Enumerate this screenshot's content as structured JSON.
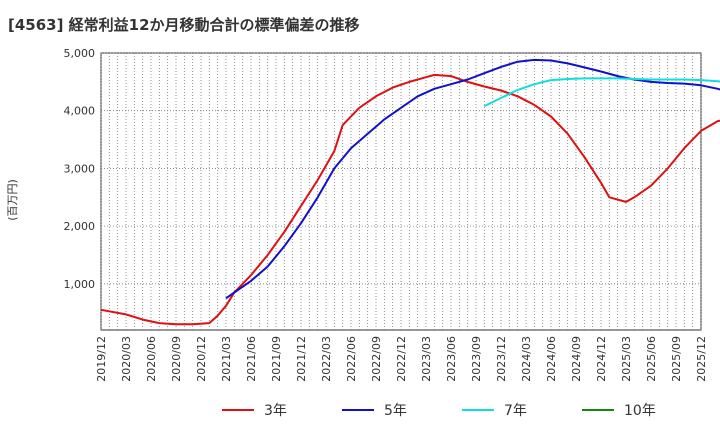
{
  "chart_data": {
    "type": "line",
    "title": "[4563]  経常利益12か月移動合計の標準偏差の推移",
    "ylabel": "(百万円)",
    "xlabel": "",
    "ylim": [
      200,
      5000
    ],
    "grid": true,
    "legend_position": "bottom",
    "y_ticks": [
      1000,
      2000,
      3000,
      4000,
      5000
    ],
    "y_tick_labels": [
      "1,000",
      "2,000",
      "3,000",
      "4,000",
      "5,000"
    ],
    "x_tick_labels": [
      "2019/12",
      "2020/03",
      "2020/06",
      "2020/09",
      "2020/12",
      "2021/03",
      "2021/06",
      "2021/09",
      "2021/12",
      "2022/03",
      "2022/06",
      "2022/09",
      "2022/12",
      "2023/03",
      "2023/06",
      "2023/09",
      "2023/12",
      "2024/03",
      "2024/06",
      "2024/09",
      "2024/12",
      "2025/03",
      "2025/06",
      "2025/09",
      "2025/12"
    ],
    "series": [
      {
        "name": "3年",
        "color": "#dd1111",
        "points": [
          [
            "2019/12",
            550
          ],
          [
            "2020/03",
            470
          ],
          [
            "2020/05",
            380
          ],
          [
            "2020/07",
            320
          ],
          [
            "2020/09",
            300
          ],
          [
            "2020/11",
            300
          ],
          [
            "2021/01",
            320
          ],
          [
            "2021/02",
            450
          ],
          [
            "2021/03",
            620
          ],
          [
            "2021/04",
            850
          ],
          [
            "2021/06",
            1150
          ],
          [
            "2021/08",
            1500
          ],
          [
            "2021/10",
            1900
          ],
          [
            "2021/12",
            2350
          ],
          [
            "2022/02",
            2800
          ],
          [
            "2022/04",
            3300
          ],
          [
            "2022/05",
            3750
          ],
          [
            "2022/07",
            4050
          ],
          [
            "2022/09",
            4250
          ],
          [
            "2022/11",
            4400
          ],
          [
            "2023/01",
            4500
          ],
          [
            "2023/03",
            4580
          ],
          [
            "2023/04",
            4620
          ],
          [
            "2023/06",
            4600
          ],
          [
            "2023/08",
            4500
          ],
          [
            "2023/10",
            4420
          ],
          [
            "2023/12",
            4350
          ],
          [
            "2024/02",
            4250
          ],
          [
            "2024/04",
            4100
          ],
          [
            "2024/06",
            3900
          ],
          [
            "2024/08",
            3600
          ],
          [
            "2024/10",
            3200
          ],
          [
            "2024/12",
            2750
          ],
          [
            "2025/01",
            2500
          ],
          [
            "2025/03",
            2420
          ],
          [
            "2025/04",
            2500
          ],
          [
            "2025/06",
            2700
          ],
          [
            "2025/08",
            3000
          ],
          [
            "2025/10",
            3350
          ],
          [
            "2025/12",
            3650
          ],
          [
            "2026/02",
            3820
          ],
          [
            "2026/03",
            3840
          ],
          [
            "2026/05",
            3780
          ],
          [
            "2026/07",
            3730
          ],
          [
            "2026/09",
            3700
          ]
        ]
      },
      {
        "name": "5年",
        "color": "#1111cc",
        "points": [
          [
            "2021/03",
            750
          ],
          [
            "2021/04",
            850
          ],
          [
            "2021/06",
            1050
          ],
          [
            "2021/08",
            1300
          ],
          [
            "2021/10",
            1650
          ],
          [
            "2021/12",
            2050
          ],
          [
            "2022/02",
            2500
          ],
          [
            "2022/04",
            3000
          ],
          [
            "2022/06",
            3350
          ],
          [
            "2022/08",
            3600
          ],
          [
            "2022/10",
            3850
          ],
          [
            "2022/12",
            4050
          ],
          [
            "2023/02",
            4250
          ],
          [
            "2023/04",
            4380
          ],
          [
            "2023/06",
            4460
          ],
          [
            "2023/08",
            4540
          ],
          [
            "2023/10",
            4650
          ],
          [
            "2023/12",
            4760
          ],
          [
            "2024/02",
            4850
          ],
          [
            "2024/04",
            4880
          ],
          [
            "2024/06",
            4870
          ],
          [
            "2024/08",
            4820
          ],
          [
            "2024/10",
            4750
          ],
          [
            "2024/12",
            4680
          ],
          [
            "2025/02",
            4600
          ],
          [
            "2025/04",
            4540
          ],
          [
            "2025/06",
            4500
          ],
          [
            "2025/08",
            4480
          ],
          [
            "2025/10",
            4470
          ],
          [
            "2025/12",
            4440
          ],
          [
            "2026/02",
            4380
          ],
          [
            "2026/04",
            4300
          ],
          [
            "2026/07",
            4210
          ],
          [
            "2026/09",
            4110
          ]
        ]
      },
      {
        "name": "7年",
        "color": "#11dddd",
        "points": [
          [
            "2023/10",
            4080
          ],
          [
            "2023/12",
            4220
          ],
          [
            "2024/02",
            4360
          ],
          [
            "2024/04",
            4460
          ],
          [
            "2024/06",
            4530
          ],
          [
            "2024/08",
            4550
          ],
          [
            "2024/10",
            4560
          ],
          [
            "2024/12",
            4560
          ],
          [
            "2025/02",
            4560
          ],
          [
            "2025/04",
            4550
          ],
          [
            "2025/06",
            4540
          ],
          [
            "2025/08",
            4540
          ],
          [
            "2025/10",
            4540
          ],
          [
            "2025/12",
            4530
          ],
          [
            "2026/02",
            4510
          ],
          [
            "2026/05",
            4480
          ],
          [
            "2026/07",
            4460
          ],
          [
            "2026/09",
            4440
          ]
        ]
      },
      {
        "name": "10年",
        "color": "#118811",
        "points": []
      }
    ]
  }
}
